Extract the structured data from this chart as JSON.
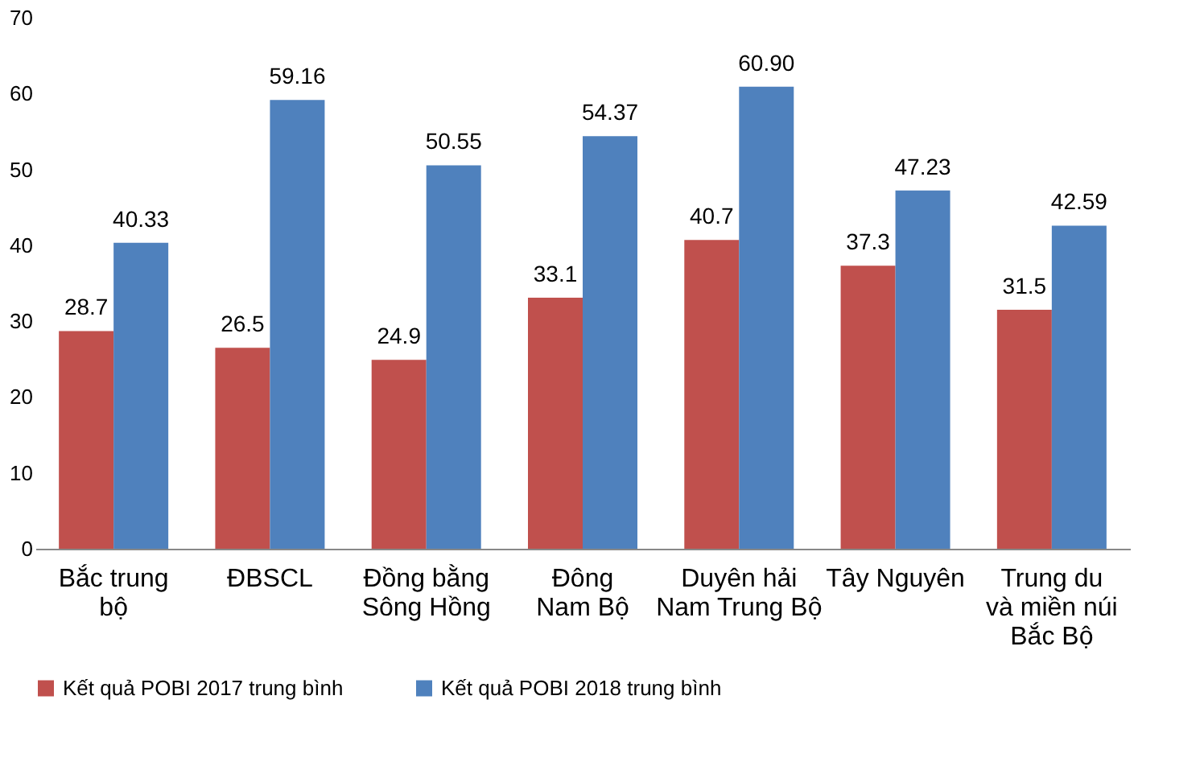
{
  "chart_data": {
    "type": "bar",
    "categories": [
      "Bắc trung\nbộ",
      "ĐBSCL",
      "Đồng bằng\nSông Hồng",
      "Đông\nNam Bộ",
      "Duyên hải\nNam Trung Bộ",
      "Tây Nguyên",
      "Trung du\nvà miền núi\nBắc Bộ"
    ],
    "series": [
      {
        "name": "Kết quả POBI 2017  trung bình",
        "color": "#c0504d",
        "values": [
          28.7,
          26.5,
          24.9,
          33.1,
          40.7,
          37.3,
          31.5
        ],
        "value_labels": [
          "28.7",
          "26.5",
          "24.9",
          "33.1",
          "40.7",
          "37.3",
          "31.5"
        ]
      },
      {
        "name": "Kết quả POBI 2018  trung bình",
        "color": "#4f81bd",
        "values": [
          40.33,
          59.16,
          50.55,
          54.37,
          60.9,
          47.23,
          42.59
        ],
        "value_labels": [
          "40.33",
          "59.16",
          "50.55",
          "54.37",
          "60.90",
          "47.23",
          "42.59"
        ]
      }
    ],
    "ylim": [
      0,
      70
    ],
    "yticks": [
      0,
      10,
      20,
      30,
      40,
      50,
      60,
      70
    ],
    "grid": false,
    "legend": "bottom"
  }
}
